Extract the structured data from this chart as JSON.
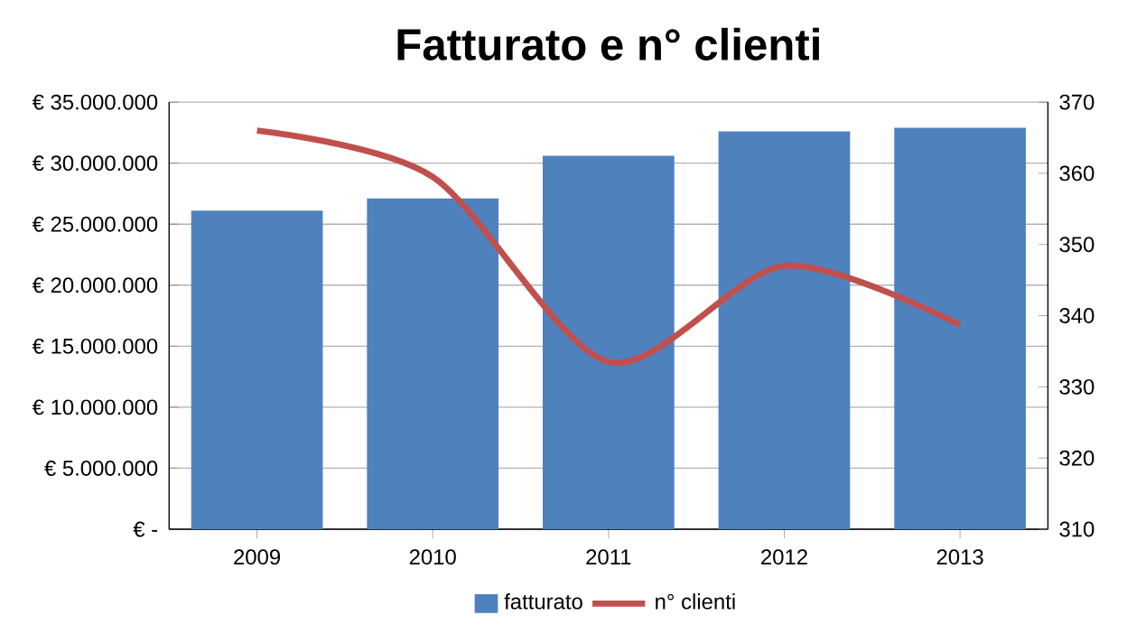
{
  "chart_data": {
    "type": "bar",
    "title": "Fatturato e n° clienti",
    "categories": [
      "2009",
      "2010",
      "2011",
      "2012",
      "2013"
    ],
    "series": [
      {
        "name": "fatturato",
        "color": "#4f81bd",
        "values": [
          26100000,
          27100000,
          30600000,
          32600000,
          32900000
        ]
      },
      {
        "name": "n° clienti",
        "type": "line",
        "axis": "y2",
        "color": "#c0504d",
        "values": [
          366,
          359.5,
          333.5,
          347,
          338.7
        ]
      }
    ],
    "ylim": [
      0,
      35000000
    ],
    "yticks": [
      {
        "value": 0,
        "label": "€ -"
      },
      {
        "value": 5000000,
        "label": "€ 5.000.000"
      },
      {
        "value": 10000000,
        "label": "€ 10.000.000"
      },
      {
        "value": 15000000,
        "label": "€ 15.000.000"
      },
      {
        "value": 20000000,
        "label": "€ 20.000.000"
      },
      {
        "value": 25000000,
        "label": "€ 25.000.000"
      },
      {
        "value": 30000000,
        "label": "€ 30.000.000"
      },
      {
        "value": 35000000,
        "label": "€ 35.000.000"
      }
    ],
    "y2lim": [
      310,
      370
    ],
    "y2ticks": [
      310,
      320,
      330,
      340,
      350,
      360,
      370
    ],
    "grid": "y",
    "legend": "bottom",
    "marker": "none",
    "line_style": "solid"
  }
}
